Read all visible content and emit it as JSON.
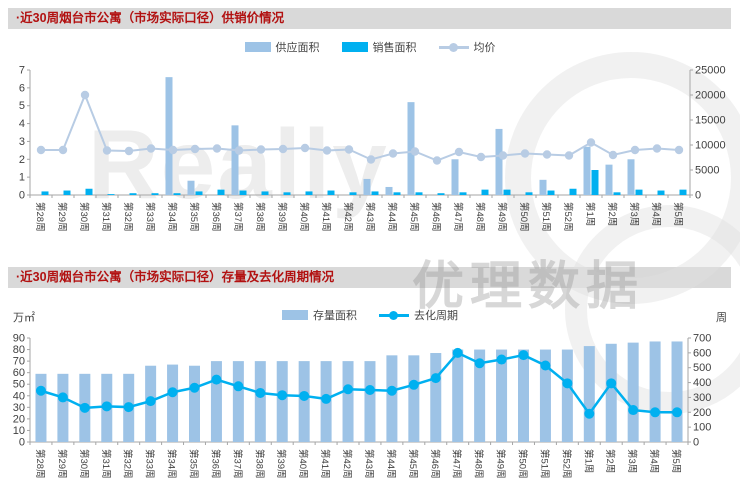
{
  "watermark": {
    "brand_text": "Really",
    "cn_text": "优理数据"
  },
  "colors": {
    "title_red": "#b21111",
    "header_bg": "#d9d9d9",
    "axis": "#a6a6a6",
    "tick_text": "#404040"
  },
  "chart_data": [
    {
      "type": "bar+line",
      "title": "·近30周烟台市公寓（市场实际口径）供销价情况",
      "categories": [
        "第28周",
        "第29周",
        "第30周",
        "第31周",
        "第32周",
        "第33周",
        "第34周",
        "第35周",
        "第36周",
        "第37周",
        "第38周",
        "第39周",
        "第40周",
        "第41周",
        "第42周",
        "第43周",
        "第44周",
        "第45周",
        "第46周",
        "第47周",
        "第48周",
        "第49周",
        "第50周",
        "第51周",
        "第52周",
        "第1周",
        "第2周",
        "第3周",
        "第4周",
        "第5周"
      ],
      "axes": {
        "left": {
          "min": 0,
          "max": 7,
          "step": 1,
          "unit": ""
        },
        "right": {
          "min": 0,
          "max": 25000,
          "step": 5000,
          "unit": ""
        }
      },
      "legend_position": "top-center",
      "series": [
        {
          "name": "供应面积",
          "type": "bar",
          "axis": "left",
          "color": "#9dc3e6",
          "values": [
            0,
            0,
            0,
            0,
            0,
            0,
            6.6,
            0.8,
            0,
            3.9,
            0,
            0,
            0,
            0,
            0,
            0.9,
            0.45,
            5.2,
            0,
            2.0,
            0,
            3.7,
            0,
            0.85,
            0,
            2.7,
            1.7,
            2.0,
            0,
            0
          ]
        },
        {
          "name": "销售面积",
          "type": "bar",
          "axis": "left",
          "color": "#00b0f0",
          "values": [
            0.2,
            0.25,
            0.35,
            0.05,
            0.1,
            0.1,
            0.1,
            0.2,
            0.3,
            0.25,
            0.2,
            0.15,
            0.2,
            0.25,
            0.15,
            0.2,
            0.15,
            0.15,
            0.1,
            0.15,
            0.3,
            0.3,
            0.15,
            0.25,
            0.35,
            1.4,
            0.15,
            0.3,
            0.25,
            0.3
          ]
        },
        {
          "name": "均价",
          "type": "line",
          "axis": "right",
          "color": "#b8cce4",
          "values": [
            9000,
            9000,
            20000,
            8900,
            8800,
            9300,
            9000,
            9200,
            9300,
            8900,
            9100,
            9200,
            9400,
            8900,
            9100,
            7100,
            8300,
            8700,
            6900,
            8600,
            7600,
            7900,
            8300,
            8100,
            7900,
            10500,
            8000,
            9000,
            9300,
            9000
          ]
        }
      ]
    },
    {
      "type": "bar+line",
      "title": "·近30周烟台市公寓（市场实际口径）存量及去化周期情况",
      "categories": [
        "第28周",
        "第29周",
        "第30周",
        "第31周",
        "第32周",
        "第33周",
        "第34周",
        "第35周",
        "第36周",
        "第37周",
        "第38周",
        "第39周",
        "第40周",
        "第41周",
        "第42周",
        "第43周",
        "第44周",
        "第45周",
        "第46周",
        "第47周",
        "第48周",
        "第49周",
        "第50周",
        "第51周",
        "第52周",
        "第1周",
        "第2周",
        "第3周",
        "第4周",
        "第5周"
      ],
      "axes": {
        "left": {
          "min": 0,
          "max": 90,
          "step": 10,
          "unit": "万㎡"
        },
        "right": {
          "min": 0,
          "max": 700,
          "step": 100,
          "unit": "周"
        }
      },
      "legend_position": "top-center",
      "series": [
        {
          "name": "存量面积",
          "type": "bar",
          "axis": "left",
          "color": "#9dc3e6",
          "values": [
            59,
            59,
            59,
            59,
            59,
            66,
            67,
            66,
            70,
            70,
            70,
            70,
            70,
            70,
            70,
            70,
            75,
            75,
            77,
            80,
            80,
            80,
            80,
            80,
            80,
            83,
            85,
            86,
            87,
            87
          ]
        },
        {
          "name": "去化周期",
          "type": "line",
          "axis": "right",
          "color": "#00b0f0",
          "values": [
            345,
            300,
            230,
            240,
            235,
            275,
            335,
            365,
            420,
            375,
            330,
            315,
            310,
            290,
            355,
            350,
            345,
            385,
            430,
            600,
            530,
            555,
            585,
            515,
            395,
            190,
            395,
            215,
            200,
            200
          ]
        }
      ]
    }
  ]
}
